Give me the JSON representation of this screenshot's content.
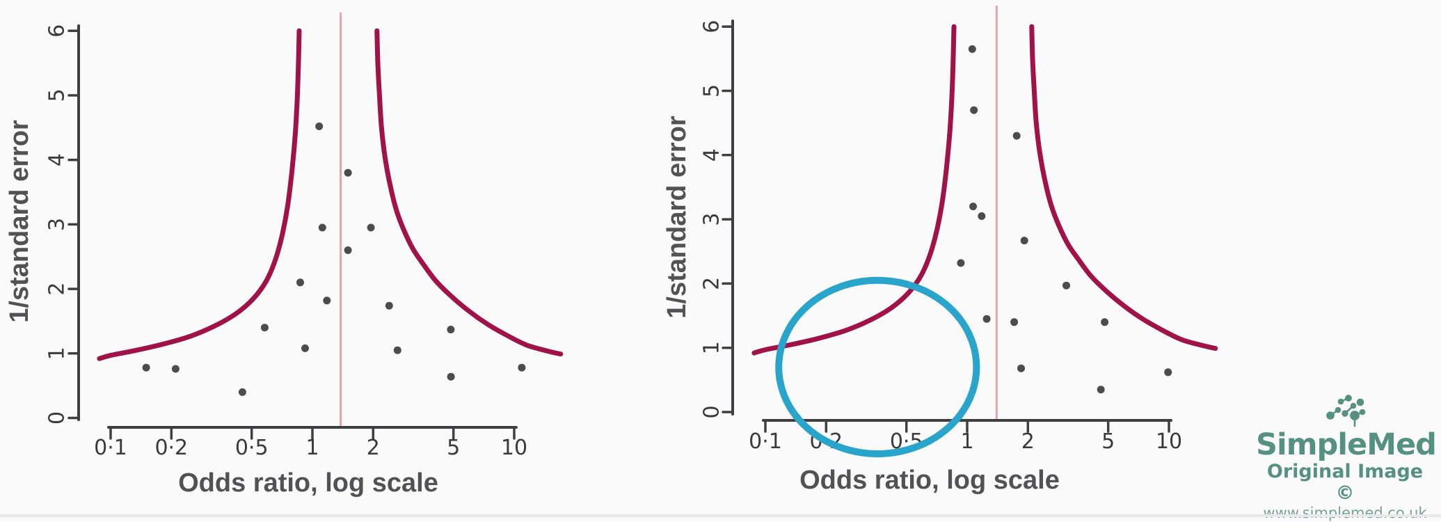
{
  "background": "#fbfafb",
  "colors": {
    "funnel_curve": "#a11348",
    "pooled_line": "#e5a2ad",
    "points": "#4c4c4c",
    "axis": "#3f3f42",
    "tick_labels": "#3a3a3a",
    "axis_titles": "#515156",
    "highlight_circle": "#29a5cc",
    "logo_green": "#55917f",
    "logo_url_green": "#74a294",
    "bottom_edge": "#e9e7ea"
  },
  "chart_data": [
    {
      "type": "scatter",
      "name": "funnel-plot-left",
      "xlabel": "Odds ratio, log scale",
      "ylabel": "1/standard error",
      "x_scale": "log",
      "xlim": [
        0.085,
        18
      ],
      "ylim": [
        0,
        6
      ],
      "x_ticks": [
        {
          "label": "0·1",
          "value": 0.1
        },
        {
          "label": "0·2",
          "value": 0.2
        },
        {
          "label": "0·5",
          "value": 0.5
        },
        {
          "label": "1",
          "value": 1
        },
        {
          "label": "2",
          "value": 2
        },
        {
          "label": "5",
          "value": 5
        },
        {
          "label": "10",
          "value": 10
        }
      ],
      "y_ticks": [
        {
          "label": "0",
          "value": 0
        },
        {
          "label": "1",
          "value": 1
        },
        {
          "label": "2",
          "value": 2
        },
        {
          "label": "3",
          "value": 3
        },
        {
          "label": "4",
          "value": 4
        },
        {
          "label": "5",
          "value": 5
        },
        {
          "label": "6",
          "value": 6
        }
      ],
      "pooled_or_line": 1.38,
      "points": [
        [
          1.08,
          4.52
        ],
        [
          1.5,
          3.8
        ],
        [
          1.12,
          2.95
        ],
        [
          1.95,
          2.95
        ],
        [
          1.5,
          2.6
        ],
        [
          0.87,
          2.1
        ],
        [
          1.18,
          1.82
        ],
        [
          0.58,
          1.4
        ],
        [
          0.92,
          1.08
        ],
        [
          2.4,
          1.74
        ],
        [
          2.64,
          1.05
        ],
        [
          4.85,
          1.37
        ],
        [
          0.15,
          0.78
        ],
        [
          0.21,
          0.76
        ],
        [
          4.86,
          0.64
        ],
        [
          0.45,
          0.4
        ],
        [
          10.9,
          0.78
        ]
      ],
      "funnel_limits": {
        "left": [
          [
            0.088,
            0.92
          ],
          [
            0.1,
            0.97
          ],
          [
            0.13,
            1.04
          ],
          [
            0.18,
            1.14
          ],
          [
            0.25,
            1.27
          ],
          [
            0.33,
            1.43
          ],
          [
            0.42,
            1.62
          ],
          [
            0.51,
            1.85
          ],
          [
            0.59,
            2.12
          ],
          [
            0.655,
            2.45
          ],
          [
            0.71,
            2.85
          ],
          [
            0.755,
            3.3
          ],
          [
            0.79,
            3.8
          ],
          [
            0.82,
            4.35
          ],
          [
            0.84,
            4.9
          ],
          [
            0.852,
            5.45
          ],
          [
            0.86,
            6.0
          ]
        ],
        "right": [
          [
            2.09,
            6.0
          ],
          [
            2.11,
            5.5
          ],
          [
            2.15,
            5.0
          ],
          [
            2.2,
            4.5
          ],
          [
            2.3,
            4.0
          ],
          [
            2.45,
            3.55
          ],
          [
            2.62,
            3.2
          ],
          [
            2.85,
            2.9
          ],
          [
            3.15,
            2.62
          ],
          [
            3.55,
            2.38
          ],
          [
            4.1,
            2.12
          ],
          [
            4.9,
            1.88
          ],
          [
            6.0,
            1.65
          ],
          [
            7.4,
            1.45
          ],
          [
            9.2,
            1.28
          ],
          [
            11.5,
            1.13
          ],
          [
            14.5,
            1.04
          ],
          [
            17.0,
            0.99
          ]
        ]
      }
    },
    {
      "type": "scatter",
      "name": "funnel-plot-right",
      "xlabel": "Odds ratio, log scale",
      "ylabel": "1/standard error",
      "x_scale": "log",
      "xlim": [
        0.085,
        18
      ],
      "ylim": [
        0,
        6
      ],
      "x_ticks": [
        {
          "label": "0·1",
          "value": 0.1
        },
        {
          "label": "0·2",
          "value": 0.2
        },
        {
          "label": "0·5",
          "value": 0.5
        },
        {
          "label": "1",
          "value": 1
        },
        {
          "label": "2",
          "value": 2
        },
        {
          "label": "5",
          "value": 5
        },
        {
          "label": "10",
          "value": 10
        }
      ],
      "y_ticks": [
        {
          "label": "0",
          "value": 0
        },
        {
          "label": "1",
          "value": 1
        },
        {
          "label": "2",
          "value": 2
        },
        {
          "label": "3",
          "value": 3
        },
        {
          "label": "4",
          "value": 4
        },
        {
          "label": "5",
          "value": 5
        },
        {
          "label": "6",
          "value": 6
        }
      ],
      "pooled_or_line": 1.4,
      "points": [
        [
          1.06,
          5.65
        ],
        [
          1.08,
          4.7
        ],
        [
          1.76,
          4.3
        ],
        [
          1.07,
          3.2
        ],
        [
          1.18,
          3.05
        ],
        [
          1.92,
          2.67
        ],
        [
          0.93,
          2.32
        ],
        [
          3.1,
          1.97
        ],
        [
          1.25,
          1.45
        ],
        [
          1.71,
          1.4
        ],
        [
          4.8,
          1.4
        ],
        [
          1.85,
          0.68
        ],
        [
          9.9,
          0.62
        ],
        [
          4.6,
          0.35
        ]
      ],
      "funnel_limits": {
        "left": [
          [
            0.088,
            0.92
          ],
          [
            0.1,
            0.97
          ],
          [
            0.13,
            1.04
          ],
          [
            0.18,
            1.14
          ],
          [
            0.25,
            1.27
          ],
          [
            0.33,
            1.43
          ],
          [
            0.42,
            1.62
          ],
          [
            0.51,
            1.85
          ],
          [
            0.59,
            2.12
          ],
          [
            0.655,
            2.45
          ],
          [
            0.71,
            2.85
          ],
          [
            0.755,
            3.3
          ],
          [
            0.79,
            3.8
          ],
          [
            0.82,
            4.35
          ],
          [
            0.84,
            4.9
          ],
          [
            0.852,
            5.45
          ],
          [
            0.86,
            6.0
          ]
        ],
        "right": [
          [
            2.09,
            6.0
          ],
          [
            2.11,
            5.5
          ],
          [
            2.15,
            5.0
          ],
          [
            2.2,
            4.5
          ],
          [
            2.3,
            4.0
          ],
          [
            2.45,
            3.55
          ],
          [
            2.62,
            3.2
          ],
          [
            2.85,
            2.9
          ],
          [
            3.15,
            2.62
          ],
          [
            3.55,
            2.38
          ],
          [
            4.1,
            2.12
          ],
          [
            4.9,
            1.88
          ],
          [
            6.0,
            1.65
          ],
          [
            7.4,
            1.45
          ],
          [
            9.2,
            1.28
          ],
          [
            11.5,
            1.13
          ],
          [
            14.5,
            1.04
          ],
          [
            17.0,
            0.99
          ]
        ]
      },
      "highlight_ellipse": {
        "center_or": 0.36,
        "center_inv_se": 0.7,
        "rx_decades": 0.49,
        "ry_units": 1.35
      }
    }
  ],
  "logo": {
    "brand": "SimpleMed",
    "tagline": "Original Image ©",
    "website": "www.simplemed.co.uk"
  }
}
